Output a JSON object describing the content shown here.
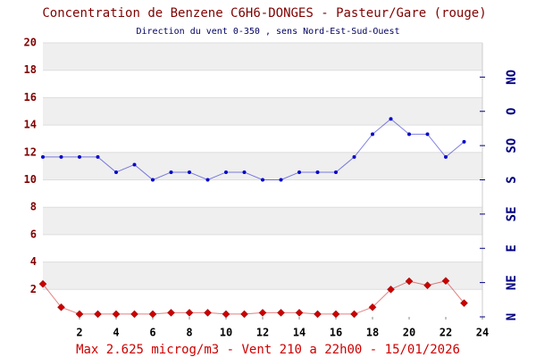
{
  "chart_data": {
    "type": "line",
    "title": "Concentration de Benzene C6H6-DONGES - Pasteur/Gare (rouge)",
    "subtitle": "Direction du vent 0-350 , sens Nord-Est-Sud-Ouest",
    "footer": "Max 2.625 microg/m3 - Vent 210  a 22h00 - 15/01/2026",
    "x": [
      0,
      1,
      2,
      3,
      4,
      5,
      6,
      7,
      8,
      9,
      10,
      11,
      12,
      13,
      14,
      15,
      16,
      17,
      18,
      19,
      20,
      21,
      22,
      23
    ],
    "xlim": [
      0,
      24
    ],
    "xticks": [
      2,
      4,
      6,
      8,
      10,
      12,
      14,
      16,
      18,
      20,
      22,
      24
    ],
    "ylim": [
      0,
      20
    ],
    "yticks": [
      2,
      4,
      6,
      8,
      10,
      12,
      14,
      16,
      18,
      20
    ],
    "y2lim": [
      0,
      360
    ],
    "y2ticks": [
      {
        "value": 0,
        "label": "N"
      },
      {
        "value": 45,
        "label": "NE"
      },
      {
        "value": 90,
        "label": "E"
      },
      {
        "value": 135,
        "label": "SE"
      },
      {
        "value": 180,
        "label": "S"
      },
      {
        "value": 225,
        "label": "SO"
      },
      {
        "value": 270,
        "label": "O"
      },
      {
        "value": 315,
        "label": "NO"
      }
    ],
    "grid": true,
    "series": [
      {
        "color": "#cc0000",
        "marker": "diamond",
        "values": [
          2.4,
          0.7,
          0.2,
          0.2,
          0.2,
          0.2,
          0.2,
          0.3,
          0.3,
          0.3,
          0.2,
          0.2,
          0.3,
          0.3,
          0.3,
          0.2,
          0.2,
          0.2,
          0.7,
          2.0,
          2.6,
          2.3,
          2.625,
          1.0
        ]
      },
      {
        "color": "#0000cc",
        "marker": "circle",
        "axis": "y2",
        "values": [
          210,
          210,
          210,
          210,
          190,
          200,
          180,
          190,
          190,
          180,
          190,
          190,
          180,
          180,
          190,
          190,
          190,
          210,
          240,
          260,
          240,
          240,
          210,
          230
        ]
      }
    ]
  }
}
